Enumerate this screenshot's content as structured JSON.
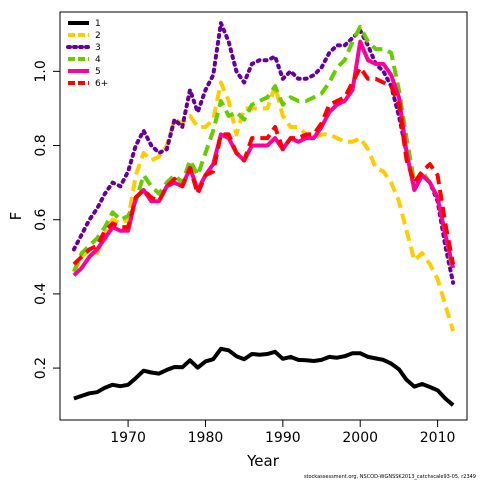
{
  "chart_data": {
    "type": "line",
    "xlabel": "Year",
    "ylabel": "F",
    "xlim": [
      1961.2,
      2013.8
    ],
    "ylim": [
      0.06,
      1.16
    ],
    "xticks": [
      1970,
      1980,
      1990,
      2000,
      2010
    ],
    "yticks": [
      0.2,
      0.4,
      0.6,
      0.8,
      1.0
    ],
    "grid": false,
    "legend_position": "top-left",
    "footnote": "stockassessment.org, NSCOD-WGNSSK2013_catchscale93-05, r2349",
    "x": [
      1963,
      1964,
      1965,
      1966,
      1967,
      1968,
      1969,
      1970,
      1971,
      1972,
      1973,
      1974,
      1975,
      1976,
      1977,
      1978,
      1979,
      1980,
      1981,
      1982,
      1983,
      1984,
      1985,
      1986,
      1987,
      1988,
      1989,
      1990,
      1991,
      1992,
      1993,
      1994,
      1995,
      1996,
      1997,
      1998,
      1999,
      2000,
      2001,
      2002,
      2003,
      2004,
      2005,
      2006,
      2007,
      2008,
      2009,
      2010,
      2011,
      2012
    ],
    "series": [
      {
        "name": "1",
        "color": "#000000",
        "dash": "solid",
        "values": [
          0.118,
          0.125,
          0.132,
          0.135,
          0.147,
          0.155,
          0.151,
          0.155,
          0.173,
          0.193,
          0.188,
          0.185,
          0.195,
          0.203,
          0.202,
          0.221,
          0.201,
          0.218,
          0.224,
          0.252,
          0.248,
          0.232,
          0.224,
          0.238,
          0.236,
          0.238,
          0.244,
          0.225,
          0.23,
          0.222,
          0.221,
          0.219,
          0.222,
          0.23,
          0.228,
          0.232,
          0.24,
          0.24,
          0.23,
          0.226,
          0.222,
          0.212,
          0.197,
          0.168,
          0.15,
          0.157,
          0.149,
          0.14,
          0.118,
          0.1
        ]
      },
      {
        "name": "2",
        "color": "#ffcc00",
        "dash": "dashed",
        "values": [
          0.46,
          0.5,
          0.52,
          0.51,
          0.56,
          0.6,
          0.59,
          0.6,
          0.72,
          0.78,
          0.76,
          0.77,
          0.8,
          0.87,
          0.86,
          0.88,
          0.85,
          0.85,
          0.87,
          0.97,
          0.92,
          0.83,
          0.9,
          0.9,
          0.9,
          0.9,
          0.96,
          0.88,
          0.85,
          0.85,
          0.83,
          0.82,
          0.83,
          0.83,
          0.82,
          0.81,
          0.81,
          0.82,
          0.79,
          0.74,
          0.73,
          0.7,
          0.65,
          0.57,
          0.49,
          0.51,
          0.48,
          0.44,
          0.37,
          0.3
        ]
      },
      {
        "name": "3",
        "color": "#660099",
        "dash": "dotted",
        "values": [
          0.52,
          0.56,
          0.6,
          0.63,
          0.67,
          0.7,
          0.69,
          0.73,
          0.8,
          0.84,
          0.8,
          0.78,
          0.79,
          0.87,
          0.85,
          0.95,
          0.89,
          0.95,
          0.99,
          1.13,
          1.08,
          1.0,
          0.97,
          1.02,
          1.03,
          1.03,
          1.04,
          0.98,
          1.0,
          0.98,
          0.98,
          0.99,
          1.01,
          1.05,
          1.07,
          1.07,
          1.09,
          1.11,
          1.07,
          1.02,
          1.0,
          0.96,
          0.88,
          0.78,
          0.68,
          0.72,
          0.7,
          0.65,
          0.53,
          0.43
        ]
      },
      {
        "name": "4",
        "color": "#66cc00",
        "dash": "dashed",
        "values": [
          0.46,
          0.51,
          0.53,
          0.55,
          0.58,
          0.62,
          0.6,
          0.61,
          0.65,
          0.72,
          0.69,
          0.67,
          0.7,
          0.72,
          0.7,
          0.76,
          0.72,
          0.78,
          0.84,
          0.92,
          0.88,
          0.89,
          0.87,
          0.91,
          0.92,
          0.93,
          0.96,
          0.91,
          0.93,
          0.92,
          0.92,
          0.93,
          0.94,
          0.97,
          1.01,
          1.03,
          1.08,
          1.12,
          1.08,
          1.06,
          1.06,
          1.05,
          0.95,
          0.82,
          0.7,
          0.73,
          0.7,
          0.66,
          0.56,
          0.46
        ]
      },
      {
        "name": "5",
        "color": "#ff0099",
        "dash": "solid",
        "values": [
          0.45,
          0.47,
          0.5,
          0.52,
          0.55,
          0.58,
          0.57,
          0.57,
          0.66,
          0.68,
          0.65,
          0.65,
          0.69,
          0.7,
          0.69,
          0.74,
          0.68,
          0.72,
          0.75,
          0.83,
          0.82,
          0.78,
          0.76,
          0.8,
          0.8,
          0.8,
          0.82,
          0.79,
          0.82,
          0.81,
          0.82,
          0.82,
          0.85,
          0.89,
          0.91,
          0.92,
          0.95,
          1.08,
          1.03,
          1.02,
          1.02,
          0.99,
          0.93,
          0.78,
          0.68,
          0.72,
          0.7,
          0.66,
          0.56,
          0.47
        ]
      },
      {
        "name": "6+",
        "color": "#ff0000",
        "dash": "dashed",
        "values": [
          0.48,
          0.5,
          0.52,
          0.53,
          0.57,
          0.59,
          0.58,
          0.58,
          0.66,
          0.68,
          0.66,
          0.65,
          0.69,
          0.71,
          0.69,
          0.74,
          0.67,
          0.72,
          0.73,
          0.83,
          0.83,
          0.78,
          0.76,
          0.82,
          0.82,
          0.82,
          0.85,
          0.79,
          0.82,
          0.82,
          0.83,
          0.83,
          0.86,
          0.91,
          0.92,
          0.93,
          0.97,
          1.01,
          0.98,
          0.98,
          0.97,
          0.96,
          0.91,
          0.76,
          0.7,
          0.73,
          0.75,
          0.72,
          0.59,
          0.48
        ]
      }
    ]
  }
}
